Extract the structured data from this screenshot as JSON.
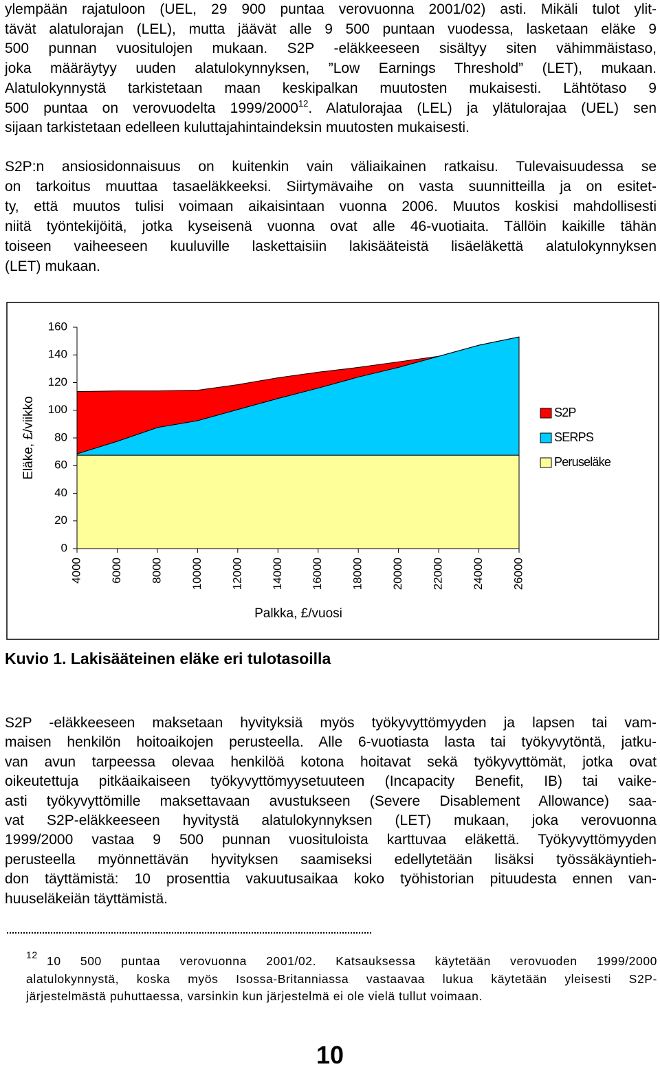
{
  "paragraphs": [
    {
      "lines": [
        "ylempään rajatuloon (UEL, 29 900 puntaa verovuonna 2001/02) asti. Mikäli tulot ylit-",
        "tävät alatulorajan (LEL), mutta jäävät alle 9 500 puntaan vuodessa, lasketaan eläke 9",
        "500 punnan vuositulojen mukaan. S2P -eläkkeeseen sisältyy siten vähimmäistaso,",
        "joka määräytyy uuden alatulokynnyksen, ”Low Earnings Threshold” (LET), mukaan.",
        "Alatulokynnystä tarkistetaan maan keskipalkan muutosten mukaisesti. Lähtötaso 9",
        {
          "text": "500 puntaa on verovuodelta 1999/2000",
          "sup": "12",
          "rest": ". Alatulorajaa (LEL) ja ylätulorajaa (UEL) sen"
        },
        "sijaan tarkistetaan edelleen kuluttajahintaindeksin muutosten mukaisesti."
      ]
    },
    {
      "lines": [
        "S2P:n ansiosidonnaisuus on kuitenkin vain väliaikainen ratkaisu. Tulevaisuudessa se",
        "on tarkoitus muuttaa tasaeläkkeeksi. Siirtymävaihe on vasta suunnitteilla ja on esitet-",
        "ty, että muutos tulisi voimaan aikaisintaan vuonna 2006. Muutos koskisi mahdollisesti",
        "niitä työntekijöitä, jotka kyseisenä vuonna ovat alle 46-vuotiaita. Tällöin kaikille tähän",
        "toiseen vaiheeseen kuuluville laskettaisiin lakisääteistä lisäeläkettä alatulokynnyksen",
        "(LET) mukaan."
      ]
    },
    {
      "lines": [
        "S2P -eläkkeeseen maksetaan hyvityksiä myös työkyvyttömyyden ja lapsen tai vam-",
        "maisen henkilön hoitoaikojen perusteella. Alle 6-vuotiasta lasta tai työkyvytöntä, jatku-",
        "van avun tarpeessa olevaa henkilöä kotona hoitavat sekä työkyvyttömät, jotka ovat",
        "oikeutettuja pitkäaikaiseen työkyvyttömyysetuuteen (Incapacity Benefit, IB) tai vaike-",
        "asti työkyvyttömille maksettavaan avustukseen (Severe Disablement Allowance) saa-",
        "vat S2P-eläkkeeseen hyvitystä alatulokynnyksen (LET) mukaan, joka verovuonna",
        "1999/2000 vastaa 9 500 punnan vuosituloista karttuvaa eläkettä. Työkyvyttömyyden",
        "perusteella myönnettävän hyvityksen saamiseksi edellytetään lisäksi työssäkäyntieh-",
        "don täyttämistä: 10 prosenttia vakuutusaikaa koko työhistorian pituudesta ennen van-",
        "huuseläkeiän täyttämistä."
      ]
    }
  ],
  "figure_caption": "Kuvio 1. Lakisääteinen eläke eri tulotasoilla",
  "footnote": {
    "marker": "12",
    "lines": [
      "10 500 puntaa verovuonna 2001/02. Katsauksessa käytetään verovuoden 1999/2000",
      "alatulokynnystä, koska myös Isossa-Britanniassa vastaavaa lukua käytetään yleisesti S2P-",
      "järjestelmästä puhuttaessa, varsinkin kun järjestelmä ei ole vielä tullut voimaan."
    ]
  },
  "page_number": "10",
  "chart_data": {
    "type": "area",
    "stacked": true,
    "xlabel": "Palkka, £/vuosi",
    "ylabel": "Eläke, £/viikko",
    "x": [
      4000,
      6000,
      8000,
      10000,
      12000,
      14000,
      16000,
      18000,
      20000,
      22000,
      24000,
      26000
    ],
    "xlim": [
      4000,
      26000
    ],
    "xticks": [
      4000,
      6000,
      8000,
      10000,
      12000,
      14000,
      16000,
      18000,
      20000,
      22000,
      24000,
      26000
    ],
    "ylim": [
      0,
      160
    ],
    "yticks": [
      0,
      20,
      40,
      60,
      80,
      100,
      120,
      140,
      160
    ],
    "grid": false,
    "legend": "right",
    "series": [
      {
        "name": "Peruseläke",
        "color": "#ffff99",
        "values": [
          67.5,
          67.5,
          67.5,
          67.5,
          67.5,
          67.5,
          67.5,
          67.5,
          67.5,
          67.5,
          67.5,
          67.5
        ]
      },
      {
        "name": "SERPS",
        "color": "#00ccff",
        "values": [
          1,
          10,
          20,
          25,
          33,
          41,
          48.5,
          56.5,
          63.5,
          71.5,
          79.5,
          85.5
        ]
      },
      {
        "name": "S2P",
        "color": "#ff0000",
        "values": [
          45,
          36.5,
          26.5,
          22,
          18,
          15,
          11.5,
          7,
          4,
          0,
          0,
          0
        ]
      }
    ]
  }
}
